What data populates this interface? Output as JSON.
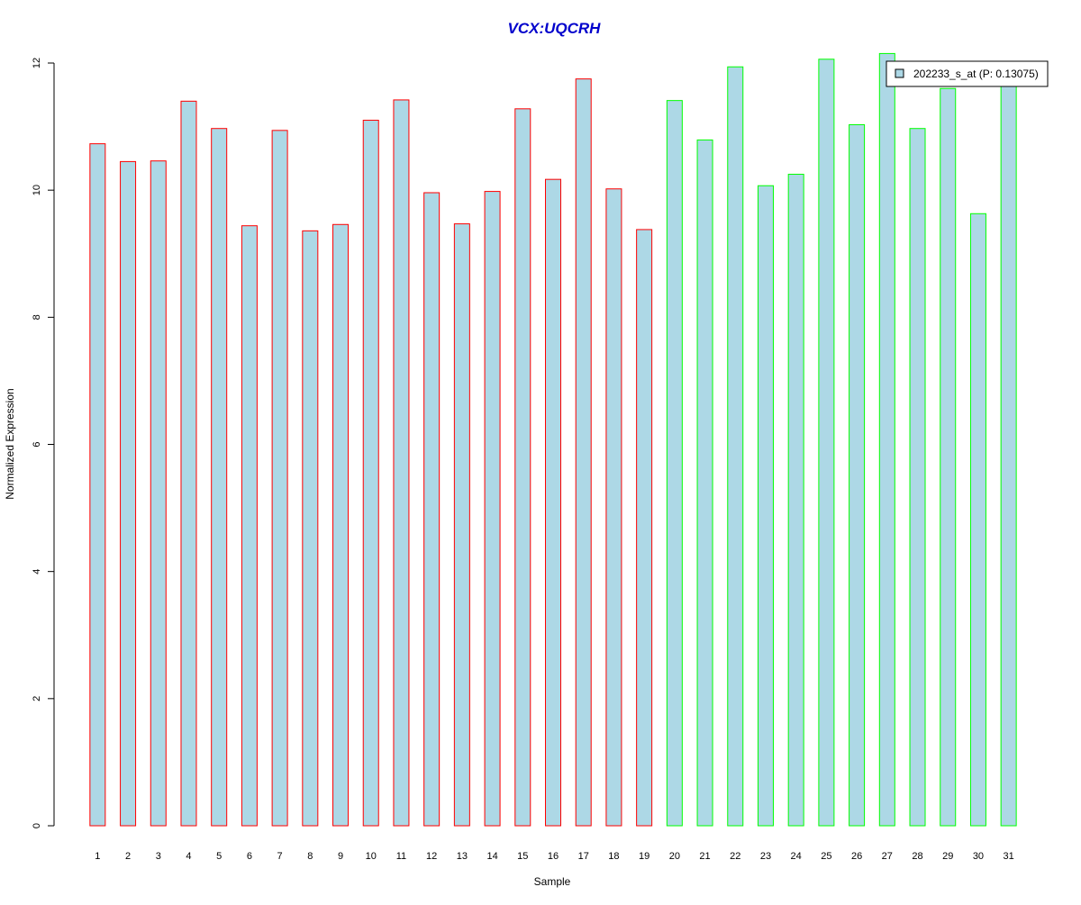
{
  "chart_data": {
    "type": "bar",
    "title": "VCX:UQCRH",
    "xlabel": "Sample",
    "ylabel": "Normalized Expression",
    "ylim": [
      0,
      12
    ],
    "yticks": [
      0,
      2,
      4,
      6,
      8,
      10,
      12
    ],
    "categories": [
      "1",
      "2",
      "3",
      "4",
      "5",
      "6",
      "7",
      "8",
      "9",
      "10",
      "11",
      "12",
      "13",
      "14",
      "15",
      "16",
      "17",
      "18",
      "19",
      "20",
      "21",
      "22",
      "23",
      "24",
      "25",
      "26",
      "27",
      "28",
      "29",
      "30",
      "31"
    ],
    "values": [
      10.73,
      10.45,
      10.46,
      11.4,
      10.97,
      9.44,
      10.94,
      9.36,
      9.46,
      11.1,
      11.42,
      9.96,
      9.47,
      9.98,
      11.28,
      10.17,
      11.75,
      10.02,
      9.38,
      11.41,
      10.79,
      11.94,
      10.07,
      10.25,
      12.06,
      11.03,
      12.15,
      10.97,
      11.6,
      9.63,
      11.71
    ],
    "series": [
      {
        "name": "202233_s_at (P: 0.13075)",
        "values": [
          10.73,
          10.45,
          10.46,
          11.4,
          10.97,
          9.44,
          10.94,
          9.36,
          9.46,
          11.1,
          11.42,
          9.96,
          9.47,
          9.98,
          11.28,
          10.17,
          11.75,
          10.02,
          9.38,
          11.41,
          10.79,
          11.94,
          10.07,
          10.25,
          12.06,
          11.03,
          12.15,
          10.97,
          11.6,
          9.63,
          11.71
        ]
      }
    ],
    "groups": [
      {
        "from": 1,
        "to": 19,
        "border_color": "#ff0000"
      },
      {
        "from": 20,
        "to": 31,
        "border_color": "#00ff00"
      }
    ],
    "bar_fill": "#add8e6",
    "title_color": "#0000cc",
    "legend": {
      "label": "202233_s_at (P: 0.13075)",
      "position": "top-right"
    },
    "grid": false
  }
}
